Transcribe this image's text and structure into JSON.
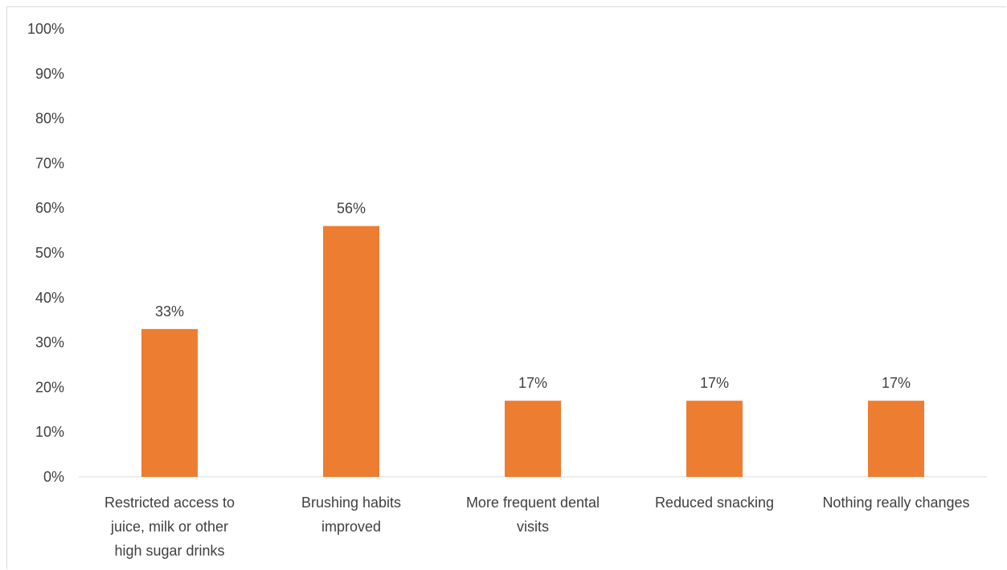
{
  "chart_data": {
    "type": "bar",
    "categories": [
      [
        "Restricted access to",
        "juice, milk or other",
        "high sugar drinks"
      ],
      [
        "Brushing habits",
        "improved"
      ],
      [
        "More frequent dental",
        "visits"
      ],
      [
        "Reduced snacking"
      ],
      [
        "Nothing really changes"
      ]
    ],
    "values": [
      33,
      56,
      17,
      17,
      17
    ],
    "data_labels": [
      "33%",
      "56%",
      "17%",
      "17%",
      "17%"
    ],
    "ylim": [
      0,
      100
    ],
    "yticks": [
      "0%",
      "10%",
      "20%",
      "30%",
      "40%",
      "50%",
      "60%",
      "70%",
      "80%",
      "90%",
      "100%"
    ],
    "title": "",
    "xlabel": "",
    "ylabel": "",
    "grid": false,
    "legend": "none",
    "bar_color": "#ED7D31",
    "axis_color": "#d9d9d9",
    "text_color": "#404040"
  }
}
